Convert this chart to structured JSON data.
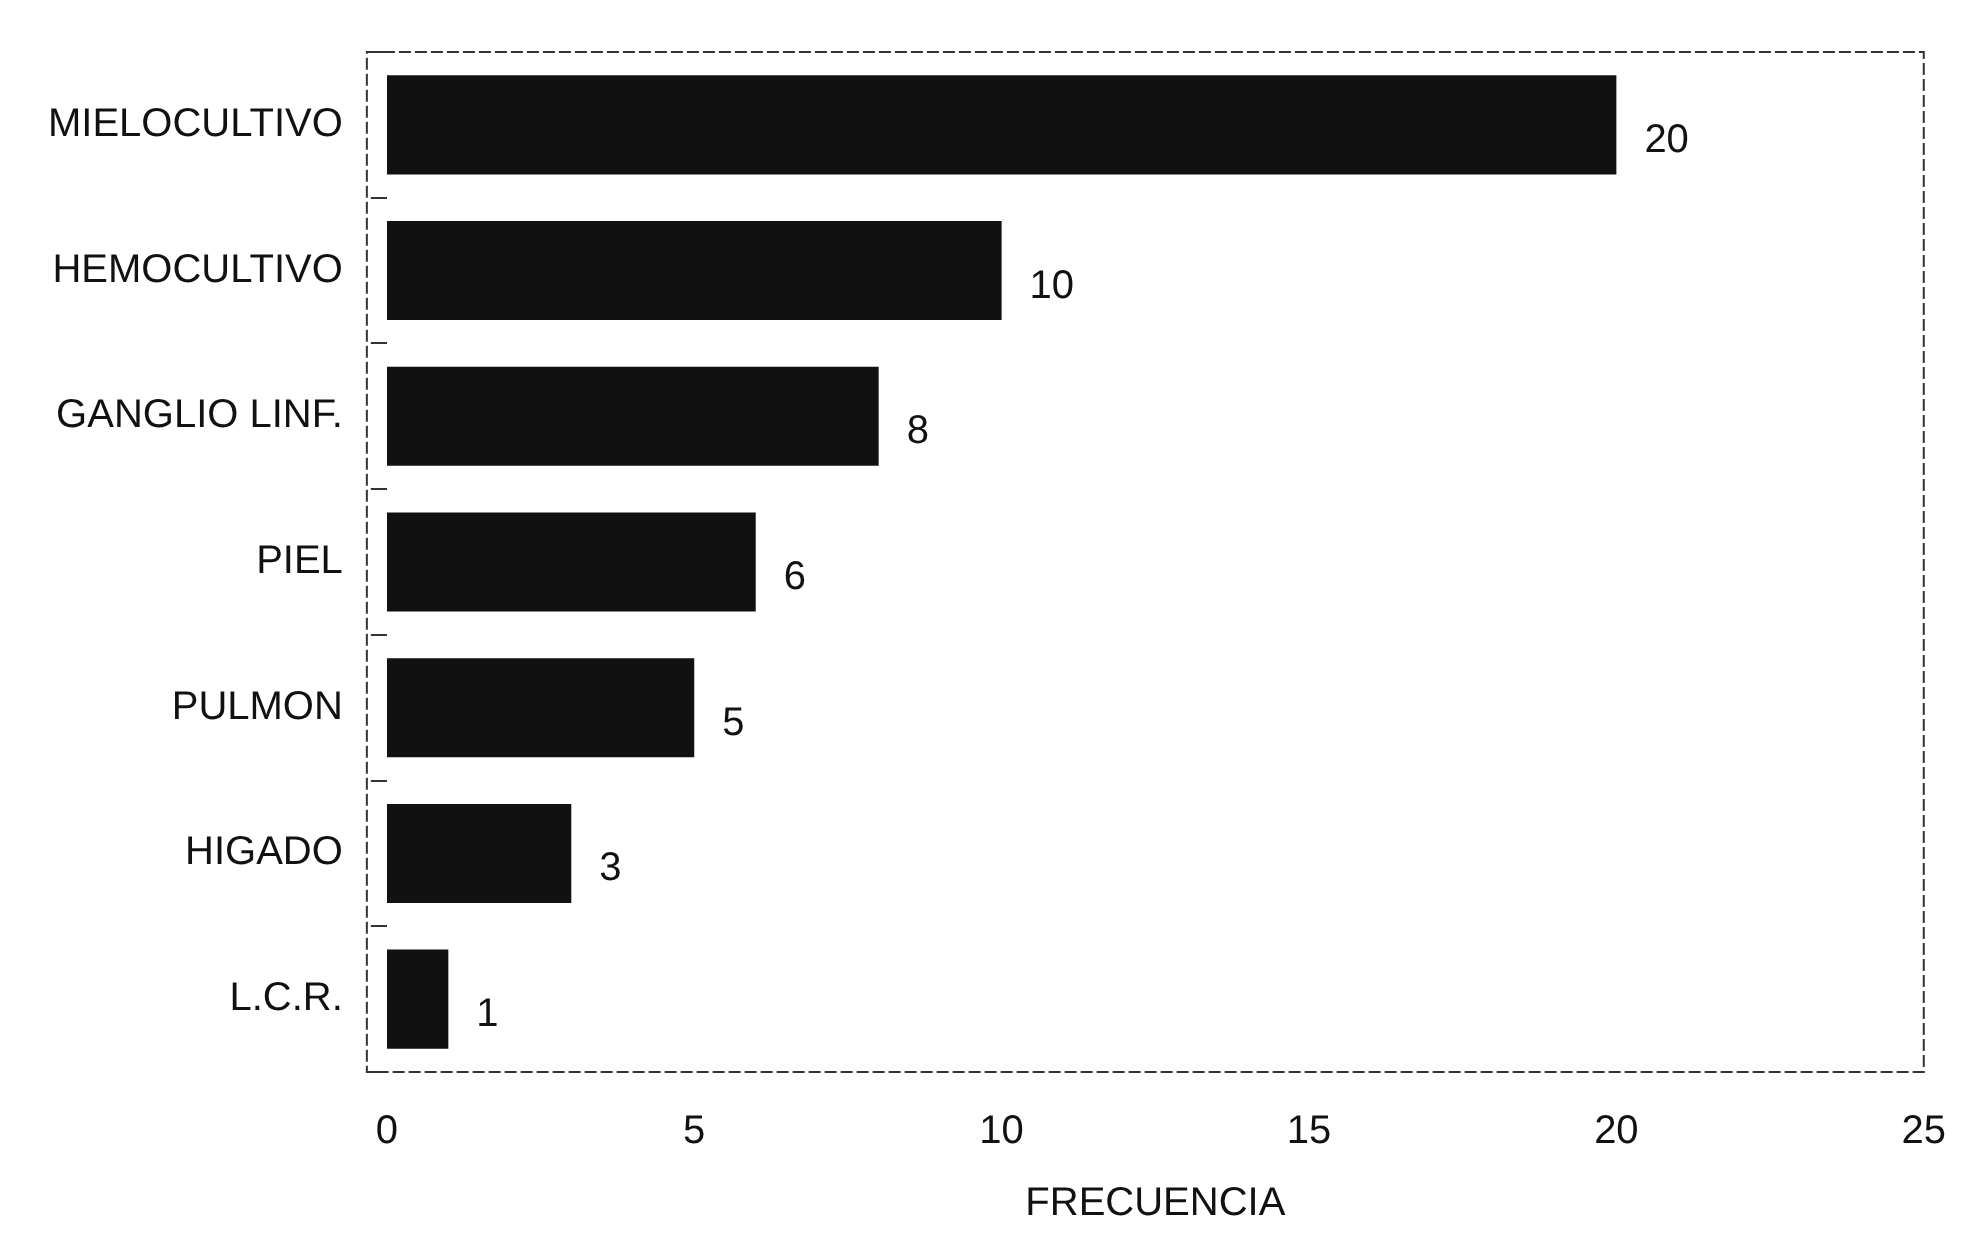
{
  "chart_data": {
    "type": "bar",
    "orientation": "horizontal",
    "xlabel": "FRECUENCIA",
    "categories": [
      "MIELOCULTIVO",
      "HEMOCULTIVO",
      "GANGLIO LINF.",
      "PIEL",
      "PULMON",
      "HIGADO",
      "L.C.R."
    ],
    "values": [
      20,
      10,
      8,
      6,
      5,
      3,
      1
    ],
    "color": "#111111",
    "xlim": [
      0,
      25
    ],
    "xticks": [
      0,
      5,
      10,
      15,
      20,
      25
    ],
    "data_labels": true,
    "grid": false,
    "legend": false
  }
}
